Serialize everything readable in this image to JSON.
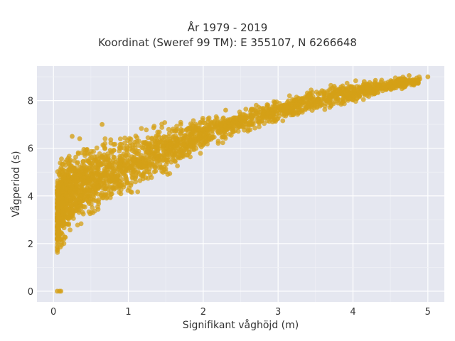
{
  "chart_data": {
    "type": "scatter",
    "title_line1": "År 1979 - 2019",
    "title_line2": "Koordinat (Sweref 99 TM): E 355107, N 6266648",
    "xlabel": "Signifikant våghöjd (m)",
    "ylabel": "Vågperiod (s)",
    "xlim": [
      -0.22,
      5.22
    ],
    "ylim": [
      -0.45,
      9.45
    ],
    "xticks": [
      0,
      1,
      2,
      3,
      4,
      5
    ],
    "yticks": [
      0,
      2,
      4,
      6,
      8
    ],
    "grid": true,
    "point_color": "#d4a017",
    "plot_background": "#e5e7f0",
    "envelope": {
      "x": [
        0.05,
        0.1,
        0.2,
        0.3,
        0.5,
        0.75,
        1.0,
        1.25,
        1.5,
        2.0,
        2.5,
        3.0,
        3.5,
        4.0,
        4.5,
        5.0
      ],
      "y_low": [
        1.0,
        1.4,
        2.0,
        2.4,
        2.8,
        3.3,
        3.7,
        4.2,
        4.7,
        5.8,
        6.5,
        7.0,
        7.5,
        7.8,
        8.3,
        8.7
      ],
      "y_high": [
        5.3,
        6.0,
        6.1,
        6.2,
        6.4,
        6.6,
        6.9,
        7.0,
        7.2,
        7.4,
        7.7,
        8.2,
        8.6,
        8.9,
        9.0,
        9.1
      ]
    },
    "outliers": [
      {
        "x": 0.05,
        "y": 0.0
      },
      {
        "x": 0.08,
        "y": 0.0
      },
      {
        "x": 0.1,
        "y": 0.0
      },
      {
        "x": 4.75,
        "y": 9.05
      },
      {
        "x": 5.0,
        "y": 9.0
      },
      {
        "x": 4.65,
        "y": 8.9
      },
      {
        "x": 4.55,
        "y": 8.8
      },
      {
        "x": 4.3,
        "y": 8.85
      },
      {
        "x": 4.15,
        "y": 8.8
      },
      {
        "x": 3.75,
        "y": 8.6
      },
      {
        "x": 0.65,
        "y": 7.0
      },
      {
        "x": 0.25,
        "y": 6.5
      },
      {
        "x": 0.35,
        "y": 6.4
      },
      {
        "x": 1.7,
        "y": 7.0
      },
      {
        "x": 2.3,
        "y": 7.6
      }
    ]
  }
}
